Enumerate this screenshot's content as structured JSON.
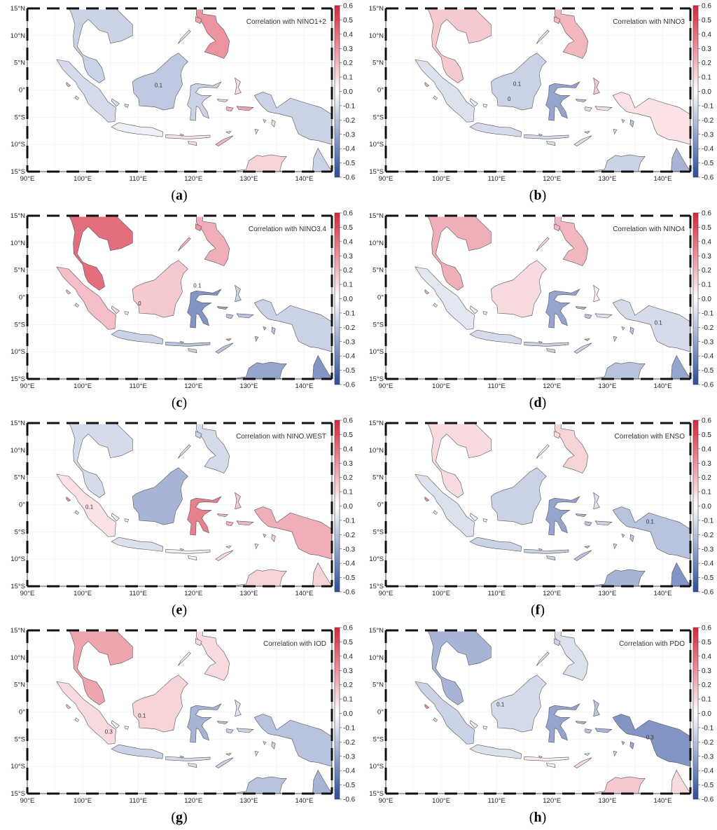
{
  "map": {
    "lat_labels": [
      "15°N",
      "10°N",
      "5°N",
      "0°",
      "5°S",
      "10°S",
      "15°S"
    ],
    "lon_labels": [
      "90°E",
      "100°E",
      "110°E",
      "120°E",
      "130°E",
      "140°E"
    ],
    "colorbar_ticks": [
      "0.6",
      "0.5",
      "0.4",
      "0.3",
      "0.2",
      "0.1",
      "0.0",
      "-0.1",
      "-0.2",
      "-0.3",
      "-0.4",
      "-0.5",
      "-0.6"
    ],
    "colors": {
      "positive": "#d7263d",
      "negative": "#2b4a9b",
      "neutral": "#ffffff"
    }
  },
  "panels": [
    {
      "letter": "a",
      "title": "Correlation with NINO1+2",
      "contours": [
        "0.1"
      ]
    },
    {
      "letter": "b",
      "title": "Correlation with NINO3",
      "contours": [
        "0.1",
        "0"
      ]
    },
    {
      "letter": "c",
      "title": "Correlation with NINO3.4",
      "contours": [
        "0",
        "0.1"
      ]
    },
    {
      "letter": "d",
      "title": "Correlation with NINO4",
      "contours": [
        "0.1"
      ]
    },
    {
      "letter": "e",
      "title": "Correlation with NINO.WEST",
      "contours": [
        "0.1"
      ]
    },
    {
      "letter": "f",
      "title": "Correlation with ENSO",
      "contours": [
        "0.1"
      ]
    },
    {
      "letter": "g",
      "title": "Correlation with IOD",
      "contours": [
        "0.1",
        "0.3"
      ]
    },
    {
      "letter": "h",
      "title": "Correlation with PDO",
      "contours": [
        "0.1",
        "0.3"
      ]
    }
  ]
}
